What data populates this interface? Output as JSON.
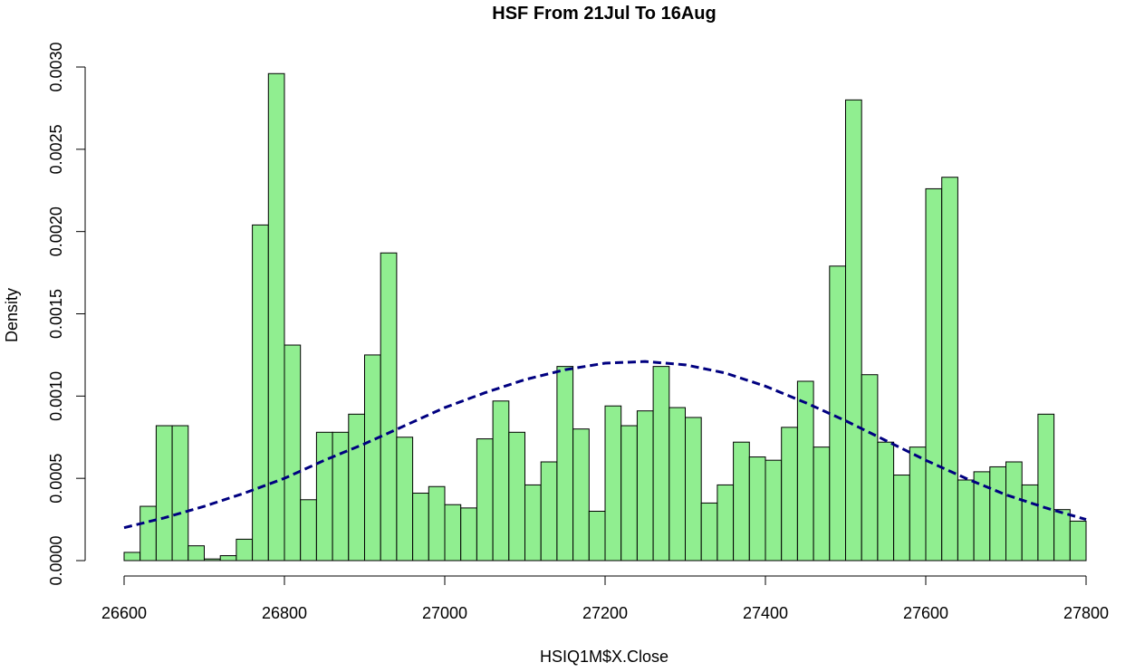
{
  "chart_data": {
    "type": "bar",
    "title": "HSF From 21Jul To 16Aug",
    "xlabel": "HSIQ1M$X.Close",
    "ylabel": "Density",
    "xlim": [
      26600,
      27800
    ],
    "ylim": [
      0,
      0.003
    ],
    "x_ticks": [
      "26600",
      "26800",
      "27000",
      "27200",
      "27400",
      "27600",
      "27800"
    ],
    "y_ticks": [
      "0.0000",
      "0.0005",
      "0.0010",
      "0.0015",
      "0.0020",
      "0.0025",
      "0.0030"
    ],
    "bin_width": 20,
    "bins_start": [
      26600,
      26620,
      26640,
      26660,
      26680,
      26700,
      26720,
      26740,
      26760,
      26780,
      26800,
      26820,
      26840,
      26860,
      26880,
      26900,
      26920,
      26940,
      26960,
      26980,
      27000,
      27020,
      27040,
      27060,
      27080,
      27100,
      27120,
      27140,
      27160,
      27180,
      27200,
      27220,
      27240,
      27260,
      27280,
      27300,
      27320,
      27340,
      27360,
      27380,
      27400,
      27420,
      27440,
      27460,
      27480,
      27500,
      27520,
      27540,
      27560,
      27580,
      27600,
      27620,
      27640,
      27660,
      27680,
      27700,
      27720,
      27740,
      27760,
      27780
    ],
    "density": [
      5e-05,
      0.00033,
      0.00082,
      0.00082,
      9e-05,
      1e-05,
      3e-05,
      0.00013,
      0.00204,
      0.00296,
      0.00131,
      0.00037,
      0.00078,
      0.00078,
      0.00089,
      0.00125,
      0.00187,
      0.00075,
      0.00041,
      0.00045,
      0.00034,
      0.00032,
      0.00074,
      0.00097,
      0.00078,
      0.00046,
      0.0006,
      0.00118,
      0.0008,
      0.0003,
      0.00094,
      0.00082,
      0.00091,
      0.00118,
      0.00093,
      0.00087,
      0.00035,
      0.00046,
      0.00072,
      0.00063,
      0.00061,
      0.00081,
      0.00109,
      0.00069,
      0.00179,
      0.0028,
      0.00113,
      0.00072,
      0.00052,
      0.00069,
      0.00226,
      0.00233,
      0.00049,
      0.00054,
      0.00057,
      0.0006,
      0.00046,
      0.00089,
      0.00031,
      0.00024
    ],
    "density_curve": {
      "style": "dashed",
      "x": [
        26600,
        26650,
        26700,
        26750,
        26800,
        26850,
        26900,
        26950,
        27000,
        27050,
        27100,
        27150,
        27200,
        27250,
        27300,
        27350,
        27400,
        27450,
        27500,
        27550,
        27600,
        27650,
        27700,
        27750,
        27800
      ],
      "y": [
        0.0002,
        0.00026,
        0.00033,
        0.00041,
        0.0005,
        0.00061,
        0.00071,
        0.00082,
        0.00093,
        0.00102,
        0.0011,
        0.00116,
        0.0012,
        0.00121,
        0.00119,
        0.00114,
        0.00106,
        0.00096,
        0.00085,
        0.00073,
        0.00061,
        0.0005,
        0.0004,
        0.00032,
        0.00025
      ]
    },
    "colors": {
      "bar_fill": "#90ee90",
      "bar_stroke": "#000000",
      "curve": "#000080"
    }
  }
}
